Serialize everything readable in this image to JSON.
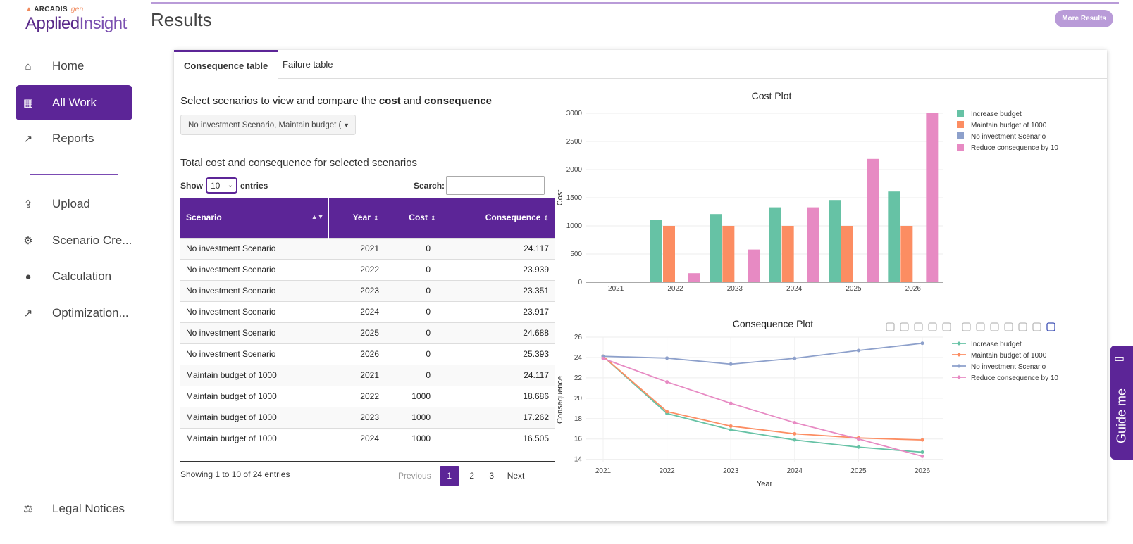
{
  "logo": {
    "brand": "ARCADIS",
    "brand_suffix": "gen",
    "product_a": "Applied",
    "product_b": "Insight"
  },
  "sidebar": {
    "items": [
      {
        "label": "Home",
        "icon": "home-icon",
        "glyph": "⌂"
      },
      {
        "label": "All Work",
        "icon": "grid-icon",
        "glyph": "▦"
      },
      {
        "label": "Reports",
        "icon": "chart-line-icon",
        "glyph": "↗"
      },
      {
        "label": "Upload",
        "icon": "upload-icon",
        "glyph": "⇪"
      },
      {
        "label": "Scenario Cre...",
        "icon": "gears-icon",
        "glyph": "⚙"
      },
      {
        "label": "Calculation",
        "icon": "brain-icon",
        "glyph": "●"
      },
      {
        "label": "Optimization...",
        "icon": "chart-line-icon",
        "glyph": "↗"
      },
      {
        "label": "Legal Notices",
        "icon": "scale-icon",
        "glyph": "⚖"
      }
    ]
  },
  "header": {
    "title": "Results",
    "more_results": "More Results"
  },
  "tabs": [
    {
      "label": "Consequence table"
    },
    {
      "label": "Failure table"
    }
  ],
  "selector": {
    "title_prefix": "Select scenarios to view and compare the",
    "title_cost": "cost",
    "title_and": "and",
    "title_consequence": "consequence",
    "dropdown_value": "No investment Scenario, Maintain budget ("
  },
  "table": {
    "title": "Total cost and consequence for selected scenarios",
    "show_label": "Show",
    "entries_value": "10",
    "entries_label": "entries",
    "search_label": "Search:",
    "columns": [
      "Scenario",
      "Year",
      "Cost",
      "Consequence"
    ],
    "rows": [
      [
        "No investment Scenario",
        "2021",
        "0",
        "24.117"
      ],
      [
        "No investment Scenario",
        "2022",
        "0",
        "23.939"
      ],
      [
        "No investment Scenario",
        "2023",
        "0",
        "23.351"
      ],
      [
        "No investment Scenario",
        "2024",
        "0",
        "23.917"
      ],
      [
        "No investment Scenario",
        "2025",
        "0",
        "24.688"
      ],
      [
        "No investment Scenario",
        "2026",
        "0",
        "25.393"
      ],
      [
        "Maintain budget of 1000",
        "2021",
        "0",
        "24.117"
      ],
      [
        "Maintain budget of 1000",
        "2022",
        "1000",
        "18.686"
      ],
      [
        "Maintain budget of 1000",
        "2023",
        "1000",
        "17.262"
      ],
      [
        "Maintain budget of 1000",
        "2024",
        "1000",
        "16.505"
      ]
    ],
    "showing": "Showing 1 to 10 of 24 entries",
    "pager": {
      "previous": "Previous",
      "pages": [
        "1",
        "2",
        "3"
      ],
      "current": "1",
      "next": "Next"
    }
  },
  "guide": {
    "label": "Guide me"
  },
  "colors": {
    "accent": "#5c2597",
    "increase": "#66c2a5",
    "maintain": "#fc8d62",
    "noinvest": "#8da0cb",
    "reduce": "#e78ac3"
  },
  "chart_data": [
    {
      "type": "bar",
      "title": "Cost Plot",
      "xlabel": "Year",
      "ylabel": "Cost",
      "categories": [
        "2021",
        "2022",
        "2023",
        "2024",
        "2025",
        "2026"
      ],
      "ylim": [
        0,
        3000
      ],
      "yticks": [
        0,
        500,
        1000,
        1500,
        2000,
        2500,
        3000
      ],
      "legend_position": "top-right",
      "series": [
        {
          "name": "Increase budget",
          "color": "#66c2a5",
          "values": [
            0,
            1100,
            1210,
            1330,
            1460,
            1610
          ]
        },
        {
          "name": "Maintain budget of 1000",
          "color": "#fc8d62",
          "values": [
            0,
            1000,
            1000,
            1000,
            1000,
            1000
          ]
        },
        {
          "name": "No investment Scenario",
          "color": "#8da0cb",
          "values": [
            0,
            0,
            0,
            0,
            0,
            0
          ]
        },
        {
          "name": "Reduce consequence by 10",
          "color": "#e78ac3",
          "values": [
            0,
            160,
            580,
            1330,
            2190,
            3000
          ]
        }
      ]
    },
    {
      "type": "line",
      "title": "Consequence Plot",
      "xlabel": "Year",
      "ylabel": "Consequence",
      "x": [
        "2021",
        "2022",
        "2023",
        "2024",
        "2025",
        "2026"
      ],
      "ylim": [
        13.7,
        26
      ],
      "yticks": [
        14,
        16,
        18,
        20,
        22,
        24,
        26
      ],
      "legend_position": "top-right",
      "series": [
        {
          "name": "Increase budget",
          "color": "#66c2a5",
          "values": [
            24.117,
            18.5,
            16.9,
            15.9,
            15.2,
            14.7
          ]
        },
        {
          "name": "Maintain budget of 1000",
          "color": "#fc8d62",
          "values": [
            24.117,
            18.686,
            17.262,
            16.505,
            16.1,
            15.9
          ]
        },
        {
          "name": "No investment Scenario",
          "color": "#8da0cb",
          "values": [
            24.117,
            23.939,
            23.351,
            23.917,
            24.688,
            25.393
          ]
        },
        {
          "name": "Reduce consequence by 10",
          "color": "#e78ac3",
          "values": [
            23.9,
            21.6,
            19.5,
            17.6,
            16.0,
            14.3
          ]
        }
      ]
    }
  ]
}
